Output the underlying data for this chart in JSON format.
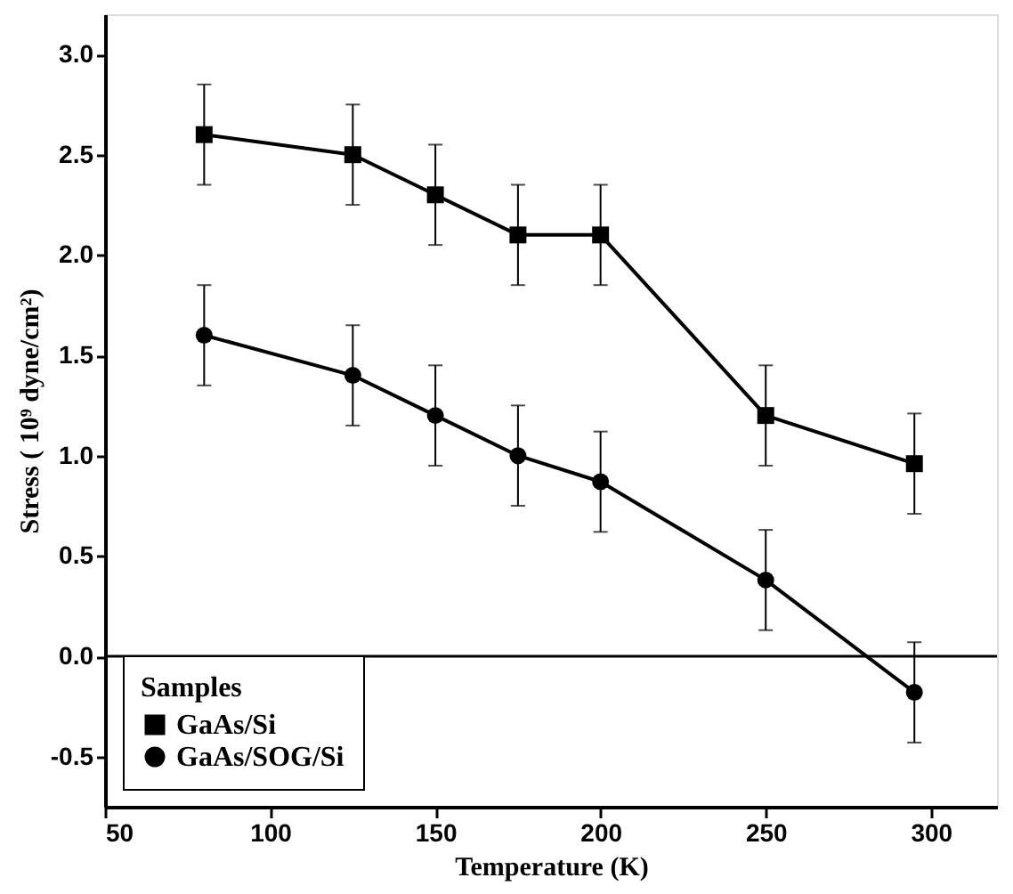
{
  "chart_data": {
    "type": "line",
    "xlabel": "Temperature (K)",
    "ylabel": "Stress ( 10⁹ dyne/cm²)",
    "legend_title": "Samples",
    "x": [
      80,
      125,
      150,
      175,
      200,
      250,
      295
    ],
    "series": [
      {
        "name": "GaAs/Si",
        "color": "#000000",
        "marker": "square",
        "values": [
          2.6,
          2.5,
          2.3,
          2.1,
          2.1,
          1.2,
          0.96
        ],
        "errors": [
          0.25,
          0.25,
          0.25,
          0.25,
          0.25,
          0.25,
          0.25
        ]
      },
      {
        "name": "GaAs/SOG/Si",
        "color": "#000000",
        "marker": "circle",
        "values": [
          1.6,
          1.4,
          1.2,
          1.0,
          0.87,
          0.38,
          -0.18
        ],
        "errors": [
          0.25,
          0.25,
          0.25,
          0.25,
          0.25,
          0.25,
          0.25
        ]
      }
    ],
    "xlim": [
      50,
      320
    ],
    "xticks": [
      50,
      100,
      150,
      200,
      250,
      300
    ],
    "ylim": [
      -0.75,
      3.2
    ],
    "yticks": [
      -0.5,
      {
        "value": 0,
        "label": "0.0"
      },
      0.5,
      {
        "value": 1,
        "label": "1.0"
      },
      1.5,
      {
        "value": 2,
        "label": "2.0"
      },
      2.5,
      {
        "value": 3,
        "label": "3.0"
      }
    ],
    "ref_lines": [
      {
        "axis": "y",
        "value": 0,
        "color": "#000000"
      }
    ],
    "legend": "bottom left",
    "grid": false,
    "line_style": "solid"
  }
}
